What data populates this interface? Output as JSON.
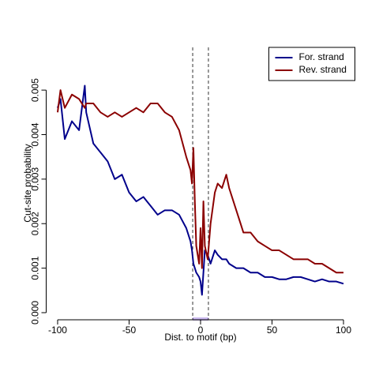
{
  "chart_data": {
    "type": "line",
    "xlabel": "Dist. to motif (bp)",
    "ylabel": "Cut-site probability",
    "x": [
      -100,
      -98,
      -95,
      -90,
      -85,
      -81,
      -80,
      -75,
      -70,
      -65,
      -60,
      -55,
      -50,
      -45,
      -40,
      -35,
      -30,
      -25,
      -20,
      -15,
      -10,
      -7,
      -6,
      -5,
      -4,
      -3,
      -1,
      0,
      1,
      2,
      3,
      5,
      7,
      10,
      12,
      15,
      18,
      20,
      25,
      28,
      30,
      35,
      40,
      45,
      50,
      55,
      60,
      65,
      70,
      75,
      80,
      85,
      90,
      95,
      100
    ],
    "series": [
      {
        "name": "For. strand",
        "color": "#00008b",
        "values": [
          0.0046,
          0.0048,
          0.0039,
          0.0043,
          0.0041,
          0.0051,
          0.0045,
          0.0038,
          0.0036,
          0.0034,
          0.003,
          0.0031,
          0.0027,
          0.0025,
          0.0026,
          0.0024,
          0.0022,
          0.0023,
          0.0023,
          0.0022,
          0.0019,
          0.0016,
          0.0014,
          0.0011,
          0.001,
          0.0009,
          0.0008,
          0.0007,
          0.0004,
          0.0009,
          0.0014,
          0.0013,
          0.0011,
          0.0014,
          0.0013,
          0.0012,
          0.0012,
          0.0011,
          0.001,
          0.001,
          0.001,
          0.0009,
          0.0009,
          0.0008,
          0.0008,
          0.00075,
          0.00075,
          0.0008,
          0.0008,
          0.00075,
          0.0007,
          0.00075,
          0.0007,
          0.0007,
          0.00065
        ]
      },
      {
        "name": "Rev. strand",
        "color": "#8b0000",
        "values": [
          0.0045,
          0.005,
          0.0046,
          0.0049,
          0.0048,
          0.0046,
          0.0047,
          0.0047,
          0.0045,
          0.0044,
          0.0045,
          0.0044,
          0.0045,
          0.0046,
          0.0045,
          0.0047,
          0.0047,
          0.0045,
          0.0044,
          0.0041,
          0.0035,
          0.0032,
          0.0029,
          0.0037,
          0.0025,
          0.0015,
          0.0011,
          0.0019,
          0.001,
          0.0025,
          0.0015,
          0.0012,
          0.002,
          0.0027,
          0.0029,
          0.0028,
          0.0031,
          0.0028,
          0.0023,
          0.002,
          0.0018,
          0.0018,
          0.0016,
          0.0015,
          0.0014,
          0.0014,
          0.0013,
          0.0012,
          0.0012,
          0.0012,
          0.0011,
          0.0011,
          0.001,
          0.0009,
          0.0009
        ]
      }
    ],
    "vlines": [
      -5.5,
      5.5
    ],
    "xlim": [
      -108,
      108
    ],
    "xticks": [
      -100,
      -50,
      0,
      50,
      100
    ],
    "ylim": [
      -0.00016,
      0.00596
    ],
    "yticks": [
      {
        "value": 0,
        "label": "0.000"
      },
      0.001,
      0.002,
      0.003,
      0.004,
      0.005
    ],
    "legend": "top-right"
  }
}
